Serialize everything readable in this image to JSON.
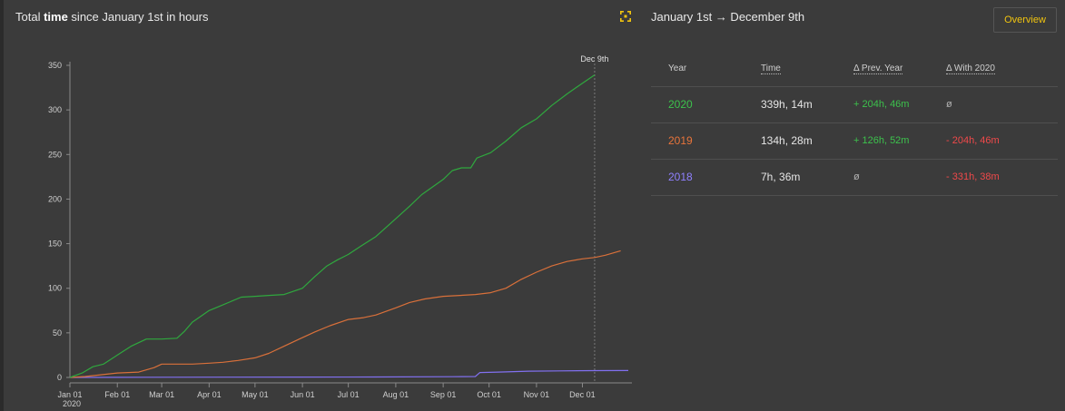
{
  "chart_panel": {
    "title_prefix": "Total ",
    "title_bold": "time",
    "title_suffix": " since January 1st in hours",
    "expand_icon": "expand-icon"
  },
  "right_panel": {
    "range_title": "January 1st → December 9th",
    "overview_label": "Overview",
    "headers": [
      "Year",
      "Time",
      "Δ Prev. Year",
      "Δ With 2020"
    ],
    "rows": [
      {
        "year": "2020",
        "time": "339h, 14m",
        "prev": "+ 204h, 46m",
        "with2020": "ø",
        "color": "#3cc24c"
      },
      {
        "year": "2019",
        "time": "134h, 28m",
        "prev": "+ 126h, 52m",
        "with2020": "- 204h, 46m",
        "color": "#e8743b"
      },
      {
        "year": "2018",
        "time": "7h, 36m",
        "prev": "ø",
        "with2020": "- 331h, 38m",
        "color": "#8f80ff"
      }
    ]
  },
  "chart_data": {
    "type": "line",
    "title": "Total time since January 1st in hours",
    "xlabel": "",
    "ylabel": "",
    "ylim": [
      0,
      350
    ],
    "yticks": [
      0,
      50,
      100,
      150,
      200,
      250,
      300,
      350
    ],
    "xlim": [
      0,
      365
    ],
    "xticks": [
      {
        "day": 0,
        "label": "Jan 01",
        "sub": "2020"
      },
      {
        "day": 31,
        "label": "Feb 01"
      },
      {
        "day": 60,
        "label": "Mar 01"
      },
      {
        "day": 91,
        "label": "Apr 01"
      },
      {
        "day": 121,
        "label": "May 01"
      },
      {
        "day": 152,
        "label": "Jun 01"
      },
      {
        "day": 182,
        "label": "Jul 01"
      },
      {
        "day": 213,
        "label": "Aug 01"
      },
      {
        "day": 244,
        "label": "Sep 01"
      },
      {
        "day": 274,
        "label": "Oct 01"
      },
      {
        "day": 305,
        "label": "Nov 01"
      },
      {
        "day": 335,
        "label": "Dec 01"
      }
    ],
    "marker": {
      "day": 343,
      "label": "Dec 9th"
    },
    "grid": false,
    "series": [
      {
        "name": "2020",
        "color": "#2fa83e",
        "x": [
          0,
          8,
          15,
          22,
          31,
          40,
          50,
          60,
          70,
          75,
          80,
          91,
          98,
          105,
          112,
          121,
          130,
          140,
          152,
          160,
          168,
          175,
          182,
          190,
          200,
          213,
          222,
          230,
          244,
          250,
          256,
          262,
          266,
          275,
          285,
          295,
          305,
          315,
          325,
          335,
          343
        ],
        "y": [
          0,
          5,
          12,
          15,
          25,
          35,
          43,
          43,
          44,
          52,
          62,
          75,
          80,
          85,
          90,
          91,
          92,
          93,
          100,
          113,
          125,
          132,
          138,
          147,
          158,
          178,
          192,
          205,
          222,
          232,
          235,
          235,
          246,
          252,
          265,
          280,
          290,
          305,
          318,
          330,
          339.2
        ]
      },
      {
        "name": "2019",
        "color": "#d9703a",
        "x": [
          0,
          10,
          20,
          31,
          45,
          55,
          60,
          70,
          80,
          91,
          100,
          110,
          121,
          130,
          140,
          150,
          160,
          170,
          182,
          192,
          200,
          213,
          222,
          232,
          244,
          255,
          265,
          275,
          285,
          295,
          305,
          315,
          325,
          335,
          343,
          350,
          360
        ],
        "y": [
          0,
          1,
          3,
          5,
          6,
          11,
          15,
          15,
          15,
          16,
          17,
          19,
          22,
          27,
          35,
          43,
          51,
          58,
          65,
          67,
          70,
          78,
          84,
          88,
          91,
          92,
          93,
          95,
          100,
          110,
          118,
          125,
          130,
          133,
          134.5,
          137,
          142
        ]
      },
      {
        "name": "2018",
        "color": "#8170f0",
        "x": [
          0,
          50,
          100,
          150,
          200,
          250,
          265,
          268,
          280,
          300,
          320,
          343,
          365
        ],
        "y": [
          0,
          0.2,
          0.3,
          0.4,
          0.5,
          0.8,
          1,
          5.5,
          6,
          7,
          7.3,
          7.6,
          7.7
        ]
      }
    ]
  }
}
